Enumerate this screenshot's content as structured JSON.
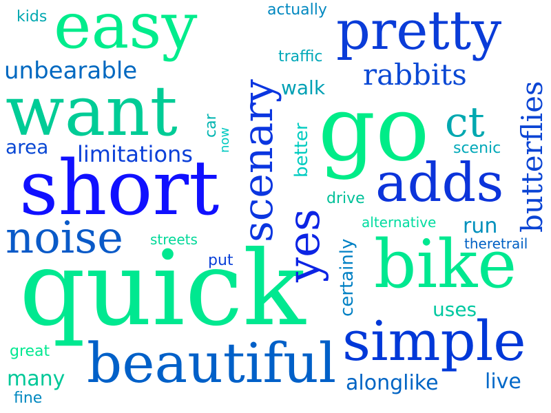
{
  "palette": {
    "green": "#00e58a",
    "teal": "#00a8b4",
    "blue": "#0055c8",
    "deep_blue": "#0010e0"
  },
  "words": [
    {
      "text": "quick",
      "color": "#00e890"
    },
    {
      "text": "short",
      "color": "#1010ff"
    },
    {
      "text": "want",
      "color": "#00cc96"
    },
    {
      "text": "go",
      "color": "#00ec88"
    },
    {
      "text": "easy",
      "color": "#00ec8c"
    },
    {
      "text": "beautiful",
      "color": "#0060c8"
    },
    {
      "text": "simple",
      "color": "#0038d8"
    },
    {
      "text": "bike",
      "color": "#00e890"
    },
    {
      "text": "pretty",
      "color": "#0a3cd8"
    },
    {
      "text": "noise",
      "color": "#0a5ac8"
    },
    {
      "text": "adds",
      "color": "#0c34da"
    },
    {
      "text": "scenary",
      "color": "#0b36e0"
    },
    {
      "text": "yes",
      "color": "#0c24e4"
    },
    {
      "text": "ct",
      "color": "#00a8b0"
    },
    {
      "text": "butterflies",
      "color": "#0a44d4"
    },
    {
      "text": "unbearable",
      "color": "#0068c0"
    },
    {
      "text": "rabbits",
      "color": "#0a48d4"
    },
    {
      "text": "limitations",
      "color": "#0c40d8"
    },
    {
      "text": "certainly",
      "color": "#0080c4"
    },
    {
      "text": "alonglike",
      "color": "#0064c4"
    },
    {
      "text": "many",
      "color": "#00c898"
    },
    {
      "text": "live",
      "color": "#0068c8"
    },
    {
      "text": "uses",
      "color": "#00c8a0"
    },
    {
      "text": "run",
      "color": "#0090bc"
    },
    {
      "text": "walk",
      "color": "#00a0b4"
    },
    {
      "text": "area",
      "color": "#0a48d4"
    },
    {
      "text": "better",
      "color": "#00ccc0"
    },
    {
      "text": "traffic",
      "color": "#00a8b8"
    },
    {
      "text": "actually",
      "color": "#0088c0"
    },
    {
      "text": "kids",
      "color": "#00a8b0"
    },
    {
      "text": "drive",
      "color": "#00c098"
    },
    {
      "text": "alternative",
      "color": "#00dca0"
    },
    {
      "text": "theretrail",
      "color": "#0060c4"
    },
    {
      "text": "streets",
      "color": "#00d898"
    },
    {
      "text": "put",
      "color": "#0a40d8"
    },
    {
      "text": "scenic",
      "color": "#00a8b8"
    },
    {
      "text": "great",
      "color": "#00e890"
    },
    {
      "text": "fine",
      "color": "#0088c0"
    },
    {
      "text": "car",
      "color": "#00b4b0"
    },
    {
      "text": "now",
      "color": "#00c8c0"
    }
  ]
}
